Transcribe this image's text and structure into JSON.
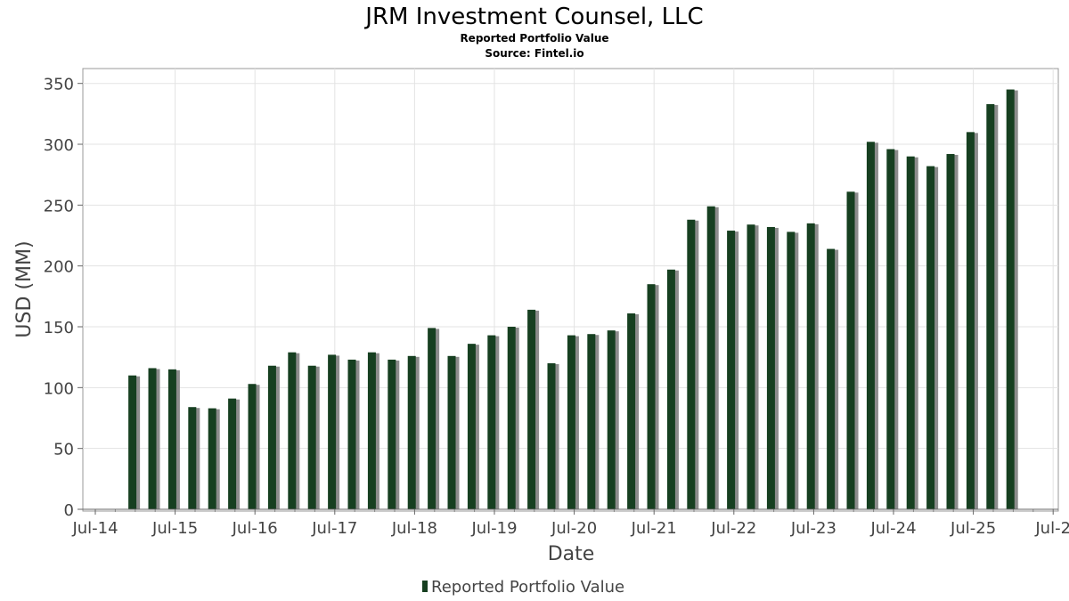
{
  "chart_data": {
    "type": "bar",
    "title": "JRM Investment Counsel, LLC",
    "subtitle": "Reported Portfolio Value",
    "source": "Source: Fintel.io",
    "xlabel": "Date",
    "ylabel": "USD (MM)",
    "ylim": [
      0,
      362
    ],
    "y_ticks": [
      0,
      50,
      100,
      150,
      200,
      250,
      300,
      350
    ],
    "x_range": [
      2014.5,
      2026.5
    ],
    "x_ticks": [
      {
        "label": "Jul-14",
        "value": 2014.5
      },
      {
        "label": "Jul-15",
        "value": 2015.5
      },
      {
        "label": "Jul-16",
        "value": 2016.5
      },
      {
        "label": "Jul-17",
        "value": 2017.5
      },
      {
        "label": "Jul-18",
        "value": 2018.5
      },
      {
        "label": "Jul-19",
        "value": 2019.5
      },
      {
        "label": "Jul-20",
        "value": 2020.5
      },
      {
        "label": "Jul-21",
        "value": 2021.5
      },
      {
        "label": "Jul-22",
        "value": 2022.5
      },
      {
        "label": "Jul-23",
        "value": 2023.5
      },
      {
        "label": "Jul-24",
        "value": 2024.5
      },
      {
        "label": "Jul-25",
        "value": 2025.5
      },
      {
        "label": "Jul-2",
        "value": 2026.5
      }
    ],
    "grid": true,
    "legend": {
      "position": "bottom-center",
      "entries": [
        "Reported Portfolio Value"
      ]
    },
    "series": [
      {
        "name": "Reported Portfolio Value",
        "color": "#163f20",
        "shadow_color": "#8c8c8c",
        "x": [
          2014.97,
          2015.22,
          2015.47,
          2015.72,
          2015.97,
          2016.22,
          2016.47,
          2016.72,
          2016.97,
          2017.22,
          2017.47,
          2017.72,
          2017.97,
          2018.22,
          2018.47,
          2018.72,
          2018.97,
          2019.22,
          2019.47,
          2019.72,
          2019.97,
          2020.22,
          2020.47,
          2020.72,
          2020.97,
          2021.22,
          2021.47,
          2021.72,
          2021.97,
          2022.22,
          2022.47,
          2022.72,
          2022.97,
          2023.22,
          2023.47,
          2023.72,
          2023.97,
          2024.22,
          2024.47,
          2024.72,
          2024.97,
          2025.22,
          2025.47,
          2025.72,
          2025.97
        ],
        "values": [
          110,
          116,
          115,
          84,
          83,
          91,
          103,
          118,
          129,
          118,
          127,
          123,
          129,
          123,
          126,
          149,
          126,
          136,
          143,
          150,
          164,
          120,
          143,
          144,
          147,
          161,
          185,
          197,
          238,
          249,
          229,
          234,
          232,
          228,
          235,
          214,
          261,
          302,
          296,
          290,
          282,
          292,
          310,
          333,
          345
        ]
      }
    ]
  }
}
